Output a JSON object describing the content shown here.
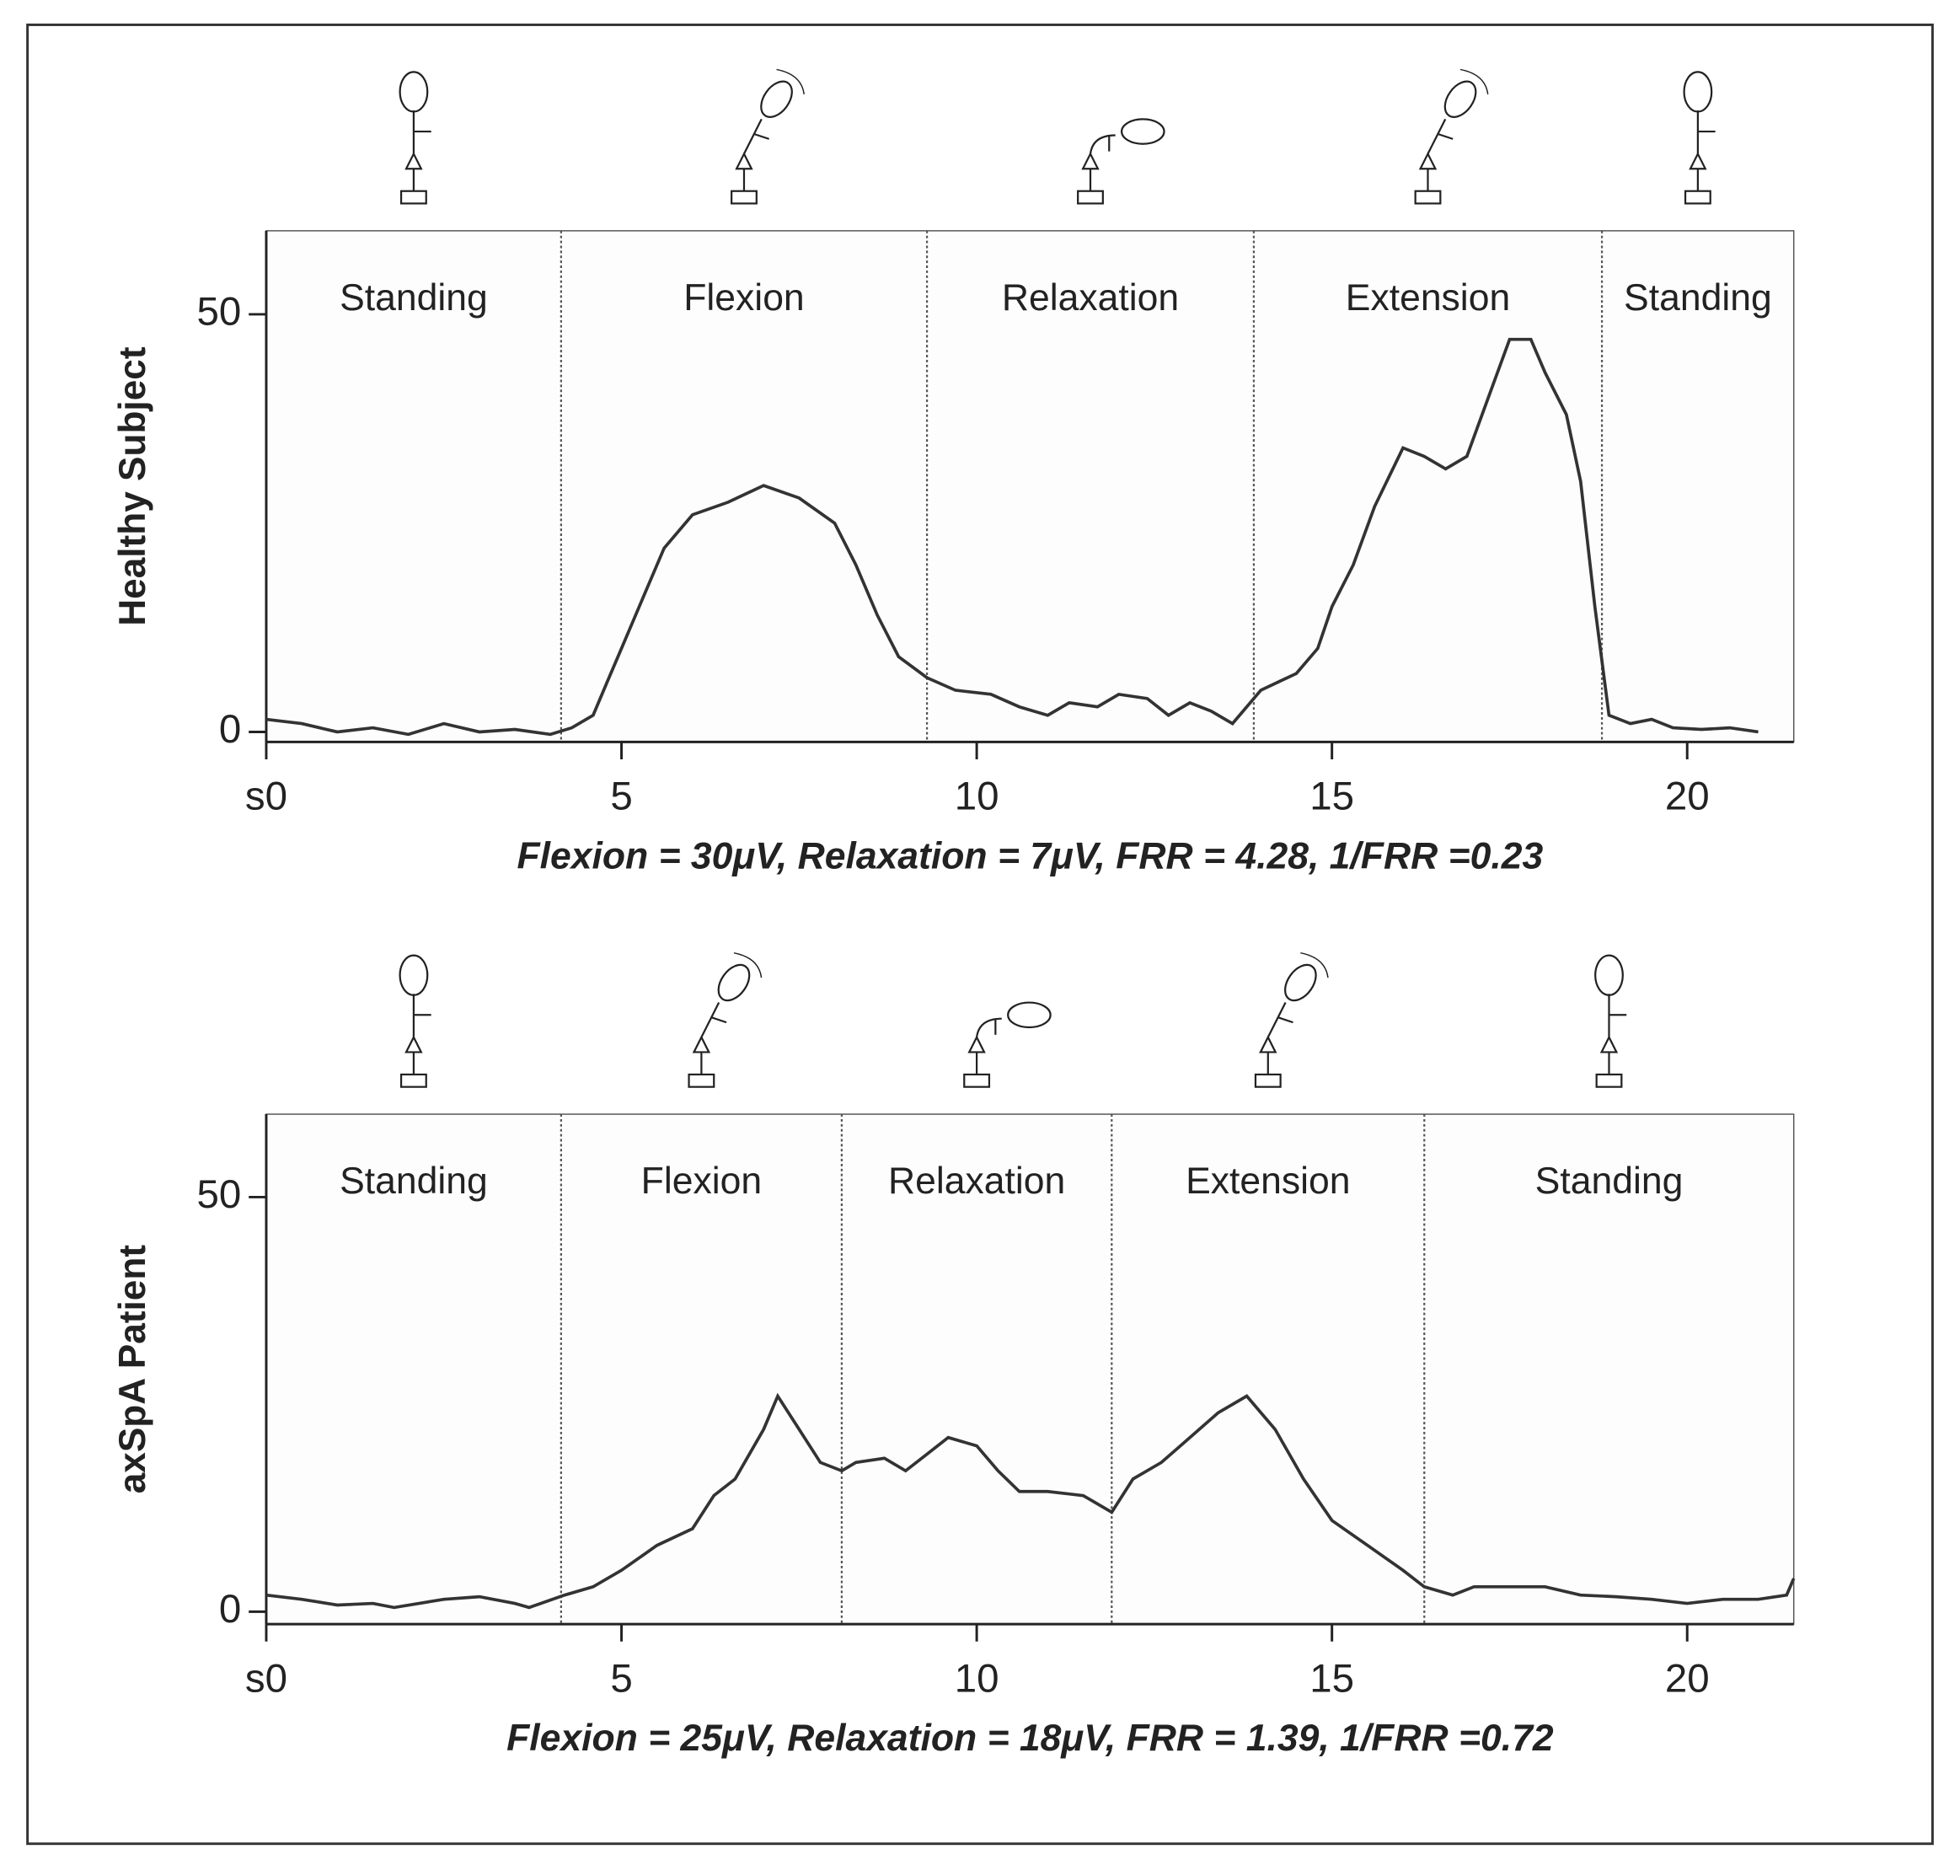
{
  "chart_data": [
    {
      "type": "line",
      "ylabel": "Healthy Subject",
      "annotation": "Flexion = 30μV, Relaxation = 7μV, FRR = 4.28, 1/FRR =0.23",
      "phase_labels": [
        "Standing",
        "Flexion",
        "Relaxation",
        "Extension",
        "Standing"
      ],
      "phase_boundaries": [
        4.15,
        9.3,
        13.9,
        18.8
      ],
      "xlim": [
        0,
        21.5
      ],
      "ylim": [
        -1.2,
        60
      ],
      "xticks": [
        {
          "value": 0,
          "label": "s0"
        },
        5,
        10,
        15,
        20
      ],
      "yticks": [
        0,
        50
      ],
      "series": [
        {
          "color": "#333333",
          "x": [
            0,
            0.5,
            1,
            1.5,
            2,
            2.5,
            3,
            3.5,
            4,
            4.3,
            4.6,
            4.8,
            5,
            5.3,
            5.6,
            6,
            6.5,
            7,
            7.5,
            8,
            8.3,
            8.6,
            8.9,
            9.3,
            9.7,
            10.2,
            10.6,
            11,
            11.3,
            11.7,
            12,
            12.4,
            12.7,
            13,
            13.3,
            13.6,
            14,
            14.5,
            14.8,
            15,
            15.3,
            15.6,
            16,
            16.3,
            16.6,
            16.9,
            17.2,
            17.5,
            17.8,
            18,
            18.3,
            18.5,
            18.7,
            18.9,
            19.2,
            19.5,
            19.8,
            20.2,
            20.6,
            21
          ],
          "values": [
            1.5,
            1,
            0,
            0.5,
            -0.3,
            1,
            0,
            0.3,
            -0.3,
            0.5,
            2,
            6,
            10,
            16,
            22,
            26,
            27.5,
            29.5,
            28,
            25,
            20,
            14,
            9,
            6.5,
            5,
            4.5,
            3,
            2,
            3.5,
            3,
            4.5,
            4,
            2,
            3.5,
            2.5,
            1,
            5,
            7,
            10,
            15,
            20,
            27,
            34,
            33,
            31.5,
            33,
            40,
            47,
            47,
            43,
            38,
            30,
            15,
            2,
            1,
            1.5,
            0.5,
            0.3,
            0.5,
            0
          ]
        }
      ]
    },
    {
      "type": "line",
      "ylabel": "axSpA Patient",
      "annotation": "Flexion = 25μV, Relaxation = 18μV, FRR = 1.39, 1/FRR =0.72",
      "phase_labels": [
        "Standing",
        "Flexion",
        "Relaxation",
        "Extension",
        "Standing"
      ],
      "phase_boundaries": [
        4.15,
        8.1,
        11.9,
        16.3
      ],
      "xlim": [
        0,
        21.5
      ],
      "ylim": [
        -1.5,
        60
      ],
      "xticks": [
        {
          "value": 0,
          "label": "s0"
        },
        5,
        10,
        15,
        20
      ],
      "yticks": [
        0,
        50
      ],
      "series": [
        {
          "color": "#333333",
          "x": [
            0,
            0.5,
            1,
            1.5,
            1.8,
            2.5,
            3,
            3.5,
            3.7,
            4.2,
            4.6,
            5,
            5.5,
            6,
            6.3,
            6.6,
            7,
            7.2,
            7.5,
            7.8,
            8.1,
            8.3,
            8.7,
            9,
            9.3,
            9.6,
            10,
            10.3,
            10.6,
            11,
            11.5,
            11.9,
            12.2,
            12.6,
            13,
            13.4,
            13.8,
            14.2,
            14.6,
            15,
            15.5,
            16,
            16.3,
            16.7,
            17,
            17.5,
            18,
            18.5,
            19,
            19.5,
            20,
            20.5,
            21,
            21.4,
            21.5
          ],
          "values": [
            2,
            1.5,
            0.8,
            1,
            0.5,
            1.5,
            1.8,
            1,
            0.5,
            2,
            3,
            5,
            8,
            10,
            14,
            16,
            22,
            26,
            22,
            18,
            17,
            18,
            18.5,
            17,
            19,
            21,
            20,
            17,
            14.5,
            14.5,
            14,
            12,
            16,
            18,
            21,
            24,
            26,
            22,
            16,
            11,
            8,
            5,
            3,
            2,
            3,
            3,
            3,
            2,
            1.8,
            1.5,
            1,
            1.5,
            1.5,
            2,
            4
          ]
        }
      ]
    }
  ]
}
